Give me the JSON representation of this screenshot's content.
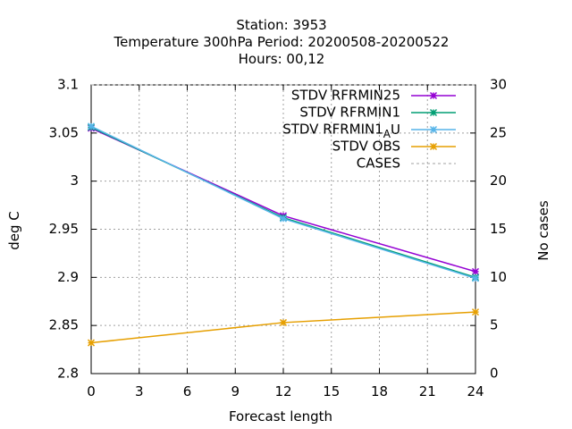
{
  "chart_data": {
    "type": "line",
    "title_lines": [
      "Station:     3953",
      "Temperature 300hPa   Period: 20200508-20200522",
      "Hours:  00,12"
    ],
    "xlabel": "Forecast length",
    "ylabel": "deg C",
    "y2label": "No cases",
    "xlim": [
      0,
      24
    ],
    "ylim": [
      2.8,
      3.1
    ],
    "y2lim": [
      0,
      30
    ],
    "xticks": [
      "0",
      "3",
      "6",
      "9",
      "12",
      "15",
      "18",
      "21",
      "24"
    ],
    "yticks": [
      "2.8",
      "2.85",
      "2.9",
      "2.95",
      "3",
      "3.05",
      "3.1"
    ],
    "y2ticks": [
      "0",
      "5",
      "10",
      "15",
      "20",
      "25",
      "30"
    ],
    "grid": true,
    "legend_position": "top-right",
    "series": [
      {
        "name": "STDV RFRMIN25",
        "color": "#9400d3",
        "x": [
          0,
          12,
          24
        ],
        "y": [
          3.055,
          2.964,
          2.906
        ],
        "axis": "y1",
        "marker": "x"
      },
      {
        "name": "STDV RFRMIN1",
        "color": "#009e73",
        "x": [
          0,
          12,
          24
        ],
        "y": [
          3.056,
          2.962,
          2.9
        ],
        "axis": "y1",
        "marker": "x"
      },
      {
        "name": "STDV RFRMIN1_AU",
        "color": "#56b4e9",
        "x": [
          0,
          12,
          24
        ],
        "y": [
          3.057,
          2.961,
          2.899
        ],
        "axis": "y1",
        "marker": "x"
      },
      {
        "name": "STDV OBS",
        "color": "#e69f00",
        "x": [
          0,
          12,
          24
        ],
        "y": [
          2.832,
          2.853,
          2.864
        ],
        "axis": "y1",
        "marker": "x"
      },
      {
        "name": "CASES",
        "color": "#a0a0a0",
        "x": [
          0,
          12,
          24
        ],
        "y": [
          30,
          30,
          30
        ],
        "axis": "y2",
        "marker": "none",
        "dashed": true
      }
    ]
  }
}
